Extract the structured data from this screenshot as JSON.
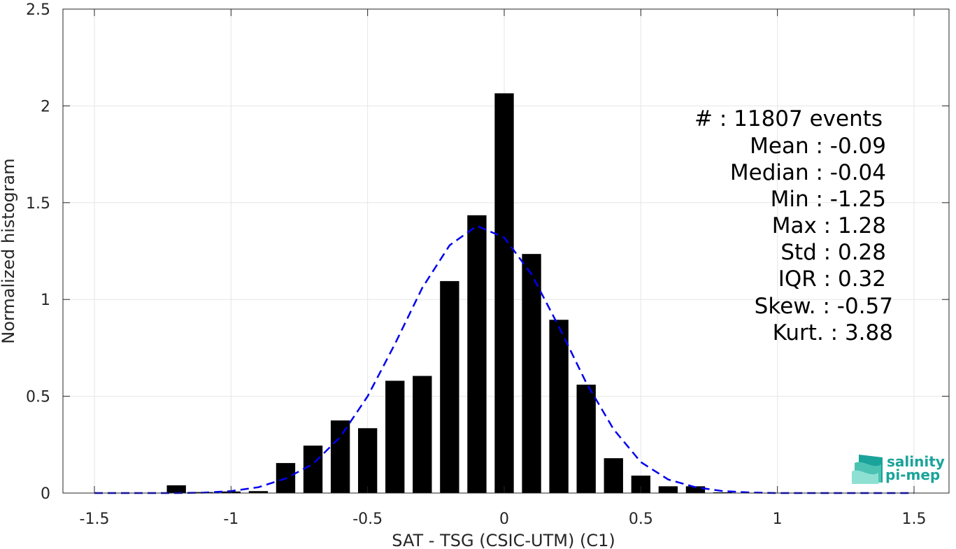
{
  "chart_data": {
    "type": "bar",
    "xlabel": "SAT - TSG (CSIC-UTM) (C1)",
    "ylabel": "Normalized histogram",
    "xlim": [
      -1.5,
      1.5
    ],
    "ylim": [
      0,
      2.5
    ],
    "x_ticks": [
      -1.5,
      -1,
      -0.5,
      0,
      0.5,
      1,
      1.5
    ],
    "x_tick_labels": [
      "-1.5",
      "-1",
      "-0.5",
      "0",
      "0.5",
      "1",
      "1.5"
    ],
    "y_ticks": [
      0,
      0.5,
      1,
      1.5,
      2,
      2.5
    ],
    "y_tick_labels": [
      "0",
      "0.5",
      "1",
      "1.5",
      "2",
      "2.5"
    ],
    "grid": true,
    "bar_width": 0.07,
    "bar_color": "#000000",
    "bars": [
      {
        "x": -1.2,
        "y": 0.04
      },
      {
        "x": -1.1,
        "y": 0.005
      },
      {
        "x": -1.0,
        "y": 0.008
      },
      {
        "x": -0.9,
        "y": 0.01
      },
      {
        "x": -0.8,
        "y": 0.155
      },
      {
        "x": -0.7,
        "y": 0.245
      },
      {
        "x": -0.6,
        "y": 0.375
      },
      {
        "x": -0.5,
        "y": 0.335
      },
      {
        "x": -0.4,
        "y": 0.58
      },
      {
        "x": -0.3,
        "y": 0.605
      },
      {
        "x": -0.2,
        "y": 1.095
      },
      {
        "x": -0.1,
        "y": 1.435
      },
      {
        "x": 0.0,
        "y": 2.065
      },
      {
        "x": 0.1,
        "y": 1.235
      },
      {
        "x": 0.2,
        "y": 0.895
      },
      {
        "x": 0.3,
        "y": 0.56
      },
      {
        "x": 0.4,
        "y": 0.18
      },
      {
        "x": 0.5,
        "y": 0.09
      },
      {
        "x": 0.6,
        "y": 0.035
      },
      {
        "x": 0.7,
        "y": 0.035
      },
      {
        "x": 0.8,
        "y": 0.004
      }
    ],
    "fit_curve": {
      "style": "dashed",
      "color": "#0000ee",
      "points": [
        [
          -1.5,
          0.0
        ],
        [
          -1.4,
          0.0
        ],
        [
          -1.3,
          0.0
        ],
        [
          -1.2,
          0.0
        ],
        [
          -1.1,
          0.002
        ],
        [
          -1.0,
          0.01
        ],
        [
          -0.9,
          0.03
        ],
        [
          -0.8,
          0.075
        ],
        [
          -0.7,
          0.15
        ],
        [
          -0.6,
          0.29
        ],
        [
          -0.5,
          0.5
        ],
        [
          -0.4,
          0.77
        ],
        [
          -0.3,
          1.06
        ],
        [
          -0.2,
          1.28
        ],
        [
          -0.1,
          1.38
        ],
        [
          0.0,
          1.32
        ],
        [
          0.1,
          1.13
        ],
        [
          0.2,
          0.86
        ],
        [
          0.3,
          0.57
        ],
        [
          0.4,
          0.33
        ],
        [
          0.5,
          0.16
        ],
        [
          0.6,
          0.07
        ],
        [
          0.7,
          0.03
        ],
        [
          0.8,
          0.01
        ],
        [
          0.9,
          0.003
        ],
        [
          1.0,
          0.0
        ],
        [
          1.1,
          0.0
        ],
        [
          1.2,
          0.0
        ],
        [
          1.3,
          0.0
        ],
        [
          1.4,
          0.0
        ],
        [
          1.5,
          0.0
        ]
      ]
    },
    "annotations": [
      "#  : 11807 events",
      "Mean : -0.09",
      "Median : -0.04",
      "Min : -1.25",
      "Max : 1.28",
      "Std : 0.28",
      "IQR : 0.32",
      "Skew. : -0.57",
      "Kurt. : 3.88"
    ]
  },
  "logo": {
    "line1": "salinity",
    "line2": "pi-mep",
    "color": "#1aa39a"
  }
}
